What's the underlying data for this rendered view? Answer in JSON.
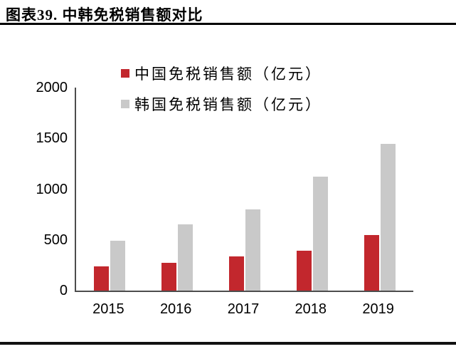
{
  "figure": {
    "title": "图表39. 中韩免税销售额对比"
  },
  "chart_data": {
    "type": "bar",
    "title": "中韩免税销售额对比",
    "categories": [
      "2015",
      "2016",
      "2017",
      "2018",
      "2019"
    ],
    "series": [
      {
        "key": "china",
        "name": "中国免税销售额（亿元）",
        "color": "#C2272D",
        "values": [
          240,
          275,
          340,
          395,
          545
        ]
      },
      {
        "key": "korea",
        "name": "韩国免税销售额（亿元）",
        "color": "#C9C9C9",
        "values": [
          490,
          655,
          800,
          1120,
          1445
        ]
      }
    ],
    "xlabel": "",
    "ylabel": "",
    "ylim": [
      0,
      2000
    ],
    "yticks": [
      0,
      500,
      1000,
      1500,
      2000
    ],
    "grid": false,
    "legend_position": "top-center",
    "axis_color": "#4D4D4D",
    "text_color": "#000000"
  }
}
